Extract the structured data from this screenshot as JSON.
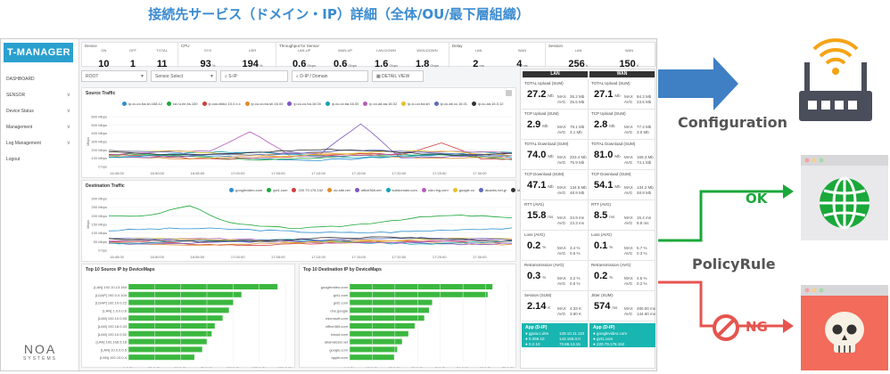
{
  "heading": "接続先サービス（ドメイン・IP）詳細（全体/OU/最下層組織）",
  "app": {
    "logo": "T-MANAGER",
    "sidebar": [
      {
        "label": "DASHBOARD",
        "chev": ""
      },
      {
        "label": "SENSOR",
        "chev": "∨"
      },
      {
        "label": "Device Status",
        "chev": "∨"
      },
      {
        "label": "Management",
        "chev": "∨"
      },
      {
        "label": "Log Management",
        "chev": "∨"
      },
      {
        "label": "Logout",
        "chev": ""
      }
    ],
    "brand": {
      "big": "NOA",
      "small": "SYSTEMS"
    },
    "stats": {
      "groups": [
        {
          "title": "Device",
          "items": [
            {
              "label": "ON",
              "value": "10",
              "unit": ""
            },
            {
              "label": "OFF",
              "value": "1",
              "unit": ""
            },
            {
              "label": "TOTAL",
              "value": "11",
              "unit": ""
            }
          ]
        },
        {
          "title": "CPU",
          "items": [
            {
              "label": "SYS",
              "value": "93",
              "unit": "%"
            },
            {
              "label": "USR",
              "value": "194",
              "unit": "%"
            }
          ]
        },
        {
          "title": "Throughput for Sensor",
          "items": [
            {
              "label": "LAN-UP",
              "value": "0.6",
              "unit": "Gbps"
            },
            {
              "label": "WAN-UP",
              "value": "0.6",
              "unit": "Gbps"
            },
            {
              "label": "LAN-DOWN",
              "value": "1.6",
              "unit": "Gbps"
            },
            {
              "label": "WAN-DOWN",
              "value": "1.8",
              "unit": "Gbps"
            }
          ]
        },
        {
          "title": "Delay",
          "items": [
            {
              "label": "LAN",
              "value": "2",
              "unit": "ms"
            },
            {
              "label": "WAN",
              "value": "4",
              "unit": "ms"
            }
          ]
        },
        {
          "title": "Session",
          "items": [
            {
              "label": "LAN",
              "value": "256",
              "unit": "K"
            },
            {
              "label": "WAN",
              "value": "150",
              "unit": "K"
            }
          ]
        }
      ]
    },
    "filters": {
      "root": "ROOT",
      "sensor": "Sensor Select",
      "sip": "S-IP",
      "dip": "D-IP / Domain",
      "detail": "DETAIL VIEW"
    },
    "source": {
      "title": "Source Traffic",
      "legend": [
        "ip.cu.co.ba.sh.168.12",
        "cd.ru.ee.bs.160",
        "ip.cus.nikko 10.0.x.x",
        "ip.cu.co.ba.sh.16.00",
        "ip.cu.co.ba.16.00",
        "ip.cu.co.ba.16.00",
        "ip.co.ad.aa.16.02",
        "ip.cu.co.ba.sh",
        "ip.cu.ab.cc.16.01",
        "ip.cu.ad.16.0.12"
      ],
      "ylabel": "Mbps",
      "yticks": [
        "600 Mbps",
        "500 Mbps",
        "400 Mbps",
        "300 Mbps",
        "200 Mbps",
        "100 Mbps",
        "0 bps"
      ],
      "xticks": [
        "16:45:00",
        "16:50:00",
        "16:55:00",
        "17:00:00",
        "17:05:00",
        "17:10:00",
        "17:15:00",
        "17:20:00",
        "17:25:00",
        "17:30:00"
      ]
    },
    "destination": {
      "title": "Destination Traffic",
      "legend": [
        "googlevideo.com",
        "gvt1.com",
        "220.79.176.152",
        "dc-site.net",
        "office365.net",
        "subdomain.com",
        "cdn.ring.com",
        "google.co",
        "akadns.net.jp",
        "xbox.com"
      ],
      "ylabel": "Mbps",
      "yticks": [
        "300 Mbps",
        "250 Mbps",
        "200 Mbps",
        "150 Mbps",
        "100 Mbps",
        "50 Mbps",
        "0 bps"
      ],
      "xticks": [
        "16:45:00",
        "16:50:00",
        "16:55:00",
        "17:00:00",
        "17:05:00",
        "17:10:00",
        "17:15:00",
        "17:20:00",
        "17:25:00",
        "17:30:00"
      ]
    },
    "top_source": {
      "title": "Top 10 Source IP by DeviceMaps",
      "labels": [
        "[LAN] 192.10.13.160",
        "[LDAP] 192.0.0.104",
        "[LDAP] 192.10.0.22",
        "[LAN] 1.0.0.0.6",
        "[LAN] 192.10.0.55",
        "[LAN] 192.18.0.33",
        "[LAN] 192.10.0.52",
        "[LAN] 192.168.5.18",
        "[LAN] 10.0.0.0.5",
        "[LAN] 192.10.0.4"
      ],
      "values": [
        0.95,
        0.72,
        0.67,
        0.64,
        0.6,
        0.55,
        0.53,
        0.5,
        0.47,
        0.42
      ],
      "xticks": [
        "0.0 Gb",
        "25.0 Gb",
        "50.0 Gb",
        "75.0 Gb",
        "100.0 Gb",
        "125.0 Gb",
        "150.0 Gb"
      ]
    },
    "top_destination": {
      "title": "Top 10 Destination IP by DeviceMaps",
      "labels": [
        "googlevideo.com",
        "gvt1.com",
        "gvt2.com",
        "dns.google",
        "microsoft.com",
        "office365.com",
        "icloud.com",
        "akamaized.net",
        "google.com",
        "apple.com"
      ],
      "values": [
        0.9,
        0.87,
        0.52,
        0.5,
        0.47,
        0.41,
        0.37,
        0.33,
        0.3,
        0.28
      ],
      "xticks": [
        "0.0 Gb",
        "10.0 Gb",
        "20.0 Gb",
        "30.0 Gb",
        "40.0 Gb",
        "50.0 Gb",
        "60.0 Gb",
        "70.0 Gb"
      ]
    },
    "kpi": {
      "headers": [
        "LAN",
        "WAN"
      ],
      "rows": [
        [
          {
            "t": "TOTAL Upload (SUM)",
            "v": "27.2",
            "u": "Mb",
            "max": "35.2 Mb",
            "avg": "25.5 Mb"
          },
          {
            "t": "TOTAL Upload (SUM)",
            "v": "27.1",
            "u": "Mb",
            "max": "94.3 Mb",
            "avg": "23.5 Mb"
          }
        ],
        [
          {
            "t": "TCP Upload (SUM)",
            "v": "2.9",
            "u": "Mb",
            "max": "79.1 Mb",
            "avg": "3.1 Mb"
          },
          {
            "t": "TCP Upload (SUM)",
            "v": "2.8",
            "u": "Mb",
            "max": "77.4 Mb",
            "avg": "3.0 Mb"
          }
        ],
        [
          {
            "t": "TOTAL Download (SUM)",
            "v": "74.0",
            "u": "Mb",
            "max": "203.4 Mb",
            "avg": "75.9 Mb"
          },
          {
            "t": "TOTAL Download (SUM)",
            "v": "81.0",
            "u": "Mb",
            "max": "169.3 Mb",
            "avg": "74.1 Mb"
          }
        ],
        [
          {
            "t": "TCP Download (SUM)",
            "v": "47.1",
            "u": "Mb",
            "max": "134.5 Mb",
            "avg": "48.9 Mb"
          },
          {
            "t": "TCP Download (SUM)",
            "v": "54.1",
            "u": "Mb",
            "max": "134.2 Mb",
            "avg": "48.9 Mb"
          }
        ],
        [
          {
            "t": "RTT (AVG)",
            "v": "15.8",
            "u": "ms",
            "max": "34.9 ms",
            "avg": "23.3 ms"
          },
          {
            "t": "RTT (AVG)",
            "v": "8.5",
            "u": "ms",
            "max": "15.4 ms",
            "avg": "8.8 ms"
          }
        ],
        [
          {
            "t": "Loss (AVG)",
            "v": "0.2",
            "u": "%",
            "max": "3.4 %",
            "avg": "0.5 %"
          },
          {
            "t": "Loss (AVG)",
            "v": "0.1",
            "u": "%",
            "max": "5.7 %",
            "avg": "0.3 %"
          }
        ],
        [
          {
            "t": "Retransmission (AVG)",
            "v": "0.3",
            "u": "%",
            "max": "3.2 %",
            "avg": "0.6 %"
          },
          {
            "t": "Retransmission (AVG)",
            "v": "0.2",
            "u": "%",
            "max": "4.5 %",
            "avg": "0.2 %"
          }
        ],
        [
          {
            "t": "Session (SUM)",
            "v": "2.14",
            "u": "K",
            "max": "4.33 K",
            "avg": "3.80 K"
          },
          {
            "t": "Jitter (SUM)",
            "v": "574",
            "u": "ms",
            "max": "480.00 ms",
            "avg": "144.60 ms"
          }
        ]
      ],
      "apps": [
        {
          "title": "App (D-IP)",
          "rows": [
            [
              "gpxw.c.dns",
              "129.10.11.110"
            ],
            [
              "0.256.10",
              "143.165.0.0"
            ],
            [
              "0.2.10",
              "73.86.13.15"
            ]
          ]
        },
        {
          "title": "App (D-IP)",
          "rows": [
            [
              "googlevideo.com",
              ""
            ],
            [
              "gvt1.com",
              ""
            ],
            [
              "220.79.176.152",
              ""
            ]
          ]
        }
      ],
      "maxlab": "MAX",
      "avglab": "AVG"
    }
  },
  "right": {
    "configuration": "Configuration",
    "ok": "OK",
    "policyrule": "PolicyRule",
    "ng": "NG"
  },
  "colors": {
    "accent": "#2aa0cf",
    "blue_arrow": "#3f7fc3",
    "green": "#1aa83a",
    "red": "#e6544f",
    "teal": "#19b5b0",
    "router": "#4a4d5a",
    "wifi": "#f5a314"
  }
}
